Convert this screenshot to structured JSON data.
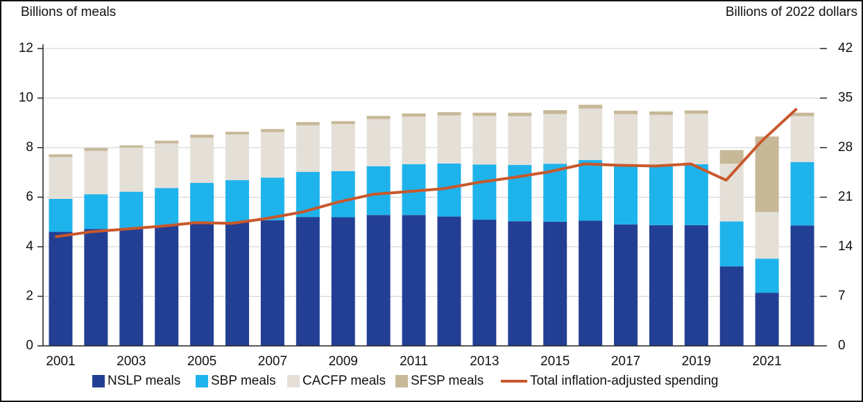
{
  "chart_data": {
    "type": "bar",
    "y_label": "Billions of meals",
    "y2_label": "Billions of 2022 dollars",
    "categories": [
      "2001",
      null,
      "2003",
      null,
      "2005",
      null,
      "2007",
      null,
      "2009",
      null,
      "2011",
      null,
      "2013",
      null,
      "2015",
      null,
      "2017",
      null,
      "2019",
      null,
      "2021",
      null
    ],
    "series": [
      {
        "name": "NSLP meals",
        "color": "#233f94",
        "values": [
          4.6,
          4.72,
          4.76,
          4.87,
          4.96,
          4.99,
          5.07,
          5.2,
          5.19,
          5.28,
          5.28,
          5.22,
          5.09,
          5.03,
          5.01,
          5.05,
          4.9,
          4.87,
          4.87,
          3.21,
          2.14,
          4.86
        ]
      },
      {
        "name": "SBP meals",
        "color": "#1fb3ec",
        "values": [
          1.33,
          1.4,
          1.46,
          1.5,
          1.62,
          1.7,
          1.72,
          1.82,
          1.86,
          1.97,
          2.05,
          2.14,
          2.23,
          2.27,
          2.34,
          2.45,
          2.4,
          2.4,
          2.46,
          1.81,
          1.38,
          2.56
        ]
      },
      {
        "name": "CACFP meals",
        "color": "#e4e0d8",
        "values": [
          1.69,
          1.75,
          1.78,
          1.8,
          1.82,
          1.84,
          1.84,
          1.88,
          1.9,
          1.9,
          1.92,
          1.94,
          1.96,
          1.97,
          2.01,
          2.08,
          2.05,
          2.05,
          2.04,
          2.33,
          1.88,
          1.85
        ]
      },
      {
        "name": "SFSP meals",
        "color": "#c7b898",
        "values": [
          0.11,
          0.11,
          0.09,
          0.11,
          0.12,
          0.11,
          0.12,
          0.13,
          0.12,
          0.13,
          0.13,
          0.13,
          0.13,
          0.14,
          0.15,
          0.15,
          0.14,
          0.14,
          0.13,
          0.55,
          3.05,
          0.14
        ]
      },
      {
        "name": "Total inflation-adjusted spending",
        "color": "#c8582b",
        "type": "line",
        "axis": "y2",
        "values": [
          15.4,
          16.1,
          16.5,
          16.9,
          17.4,
          17.3,
          18.0,
          18.9,
          20.3,
          21.4,
          21.8,
          22.2,
          23.1,
          23.8,
          24.6,
          25.7,
          25.5,
          25.4,
          25.7,
          23.4,
          28.9,
          33.5
        ]
      }
    ],
    "ylim": [
      0,
      12
    ],
    "yticks": [
      0,
      2,
      4,
      6,
      8,
      10,
      12
    ],
    "y2lim": [
      0,
      42
    ],
    "y2ticks": [
      0,
      7,
      14,
      21,
      28,
      35,
      42
    ],
    "grid": true,
    "legend": "bottom"
  }
}
